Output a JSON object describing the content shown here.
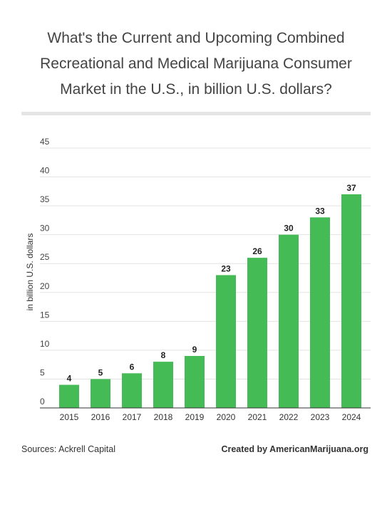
{
  "chart_data": {
    "type": "bar",
    "title": "What's the Current and Upcoming Combined Recreational and Medical Marijuana Consumer Market in the U.S., in billion U.S. dollars?",
    "title_lines": [
      "What's the Current and Upcoming Combined",
      "Recreational and Medical Marijuana Consumer",
      "Market in the U.S., in billion U.S. dollars?"
    ],
    "xlabel": "",
    "ylabel": "in billion U.S. dollars",
    "categories": [
      "2015",
      "2016",
      "2017",
      "2018",
      "2019",
      "2020",
      "2021",
      "2022",
      "2023",
      "2024"
    ],
    "values": [
      4,
      5,
      6,
      8,
      9,
      23,
      26,
      30,
      33,
      37
    ],
    "ylim": [
      0,
      45
    ],
    "yticks": [
      0,
      5,
      10,
      15,
      20,
      25,
      30,
      35,
      40,
      45
    ],
    "grid": true,
    "legend": "none",
    "bar_color": "#44bb55",
    "grid_color": "#e3e3e3",
    "axis_color": "#333333"
  },
  "footer": {
    "source": "Sources: Ackrell Capital",
    "credit": "Created by AmericanMarijuana.org"
  }
}
